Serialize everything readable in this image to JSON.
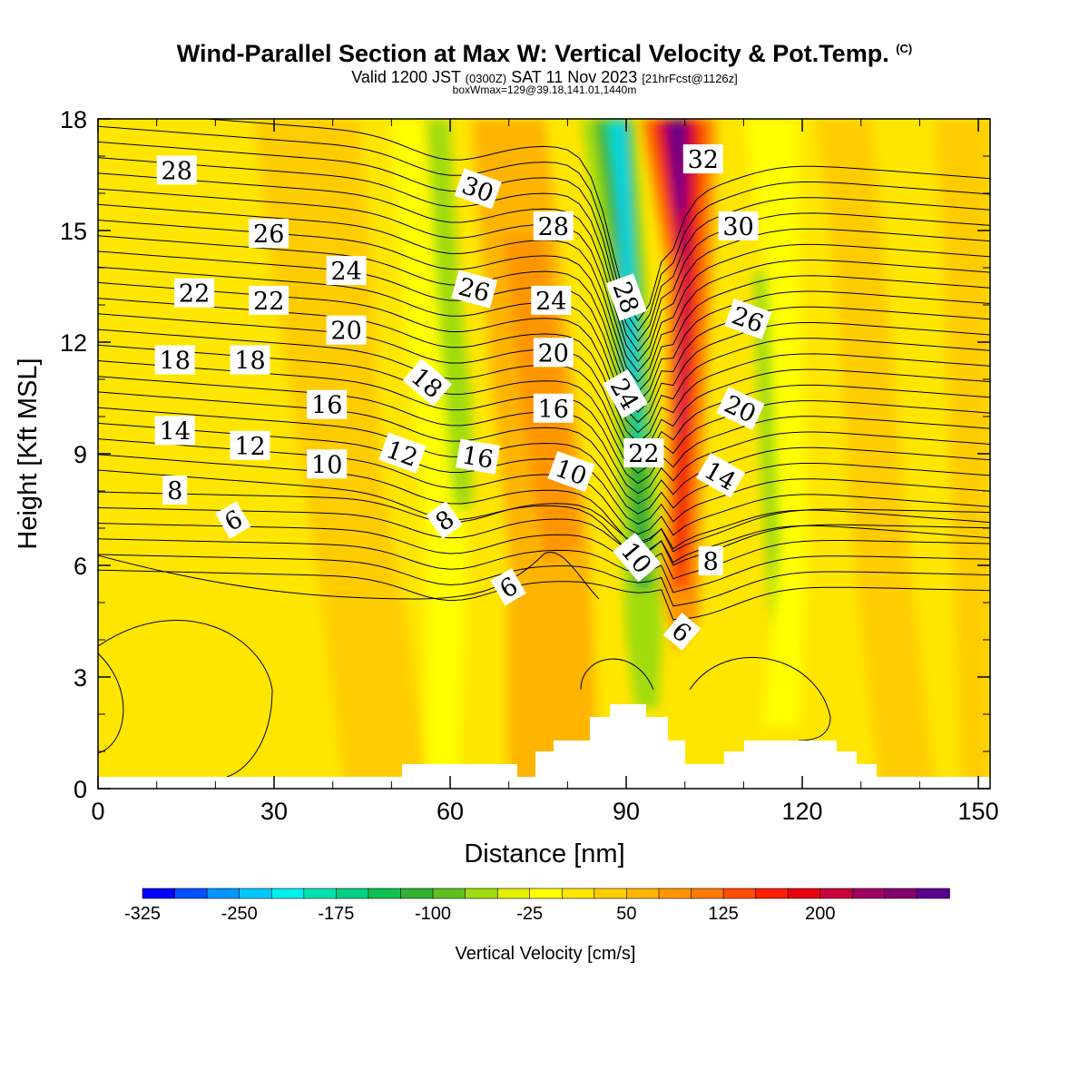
{
  "header": {
    "title": "Wind-Parallel Section at Max W: Vertical Velocity & Pot.Temp.",
    "copyright": "(C)",
    "valid_prefix": "Valid 1200 JST",
    "valid_utc": "(0300Z)",
    "valid_date": "SAT 11 Nov 2023",
    "forecast": "[21hrFcst@1126z]",
    "box_info": "boxWmax=129@39.18,141.01,1440m"
  },
  "chart_data": {
    "type": "heatmap",
    "title": "Wind-Parallel Section at Max W: Vertical Velocity & Pot.Temp.",
    "xlabel": "Distance [nm]",
    "ylabel": "Height [Kft MSL]",
    "xlim": [
      0,
      152
    ],
    "ylim": [
      0,
      18
    ],
    "x_ticks": [
      "0",
      "30",
      "60",
      "90",
      "120",
      "150"
    ],
    "y_ticks": [
      "0",
      "3",
      "6",
      "9",
      "12",
      "15",
      "18"
    ],
    "colorbar_label": "Vertical Velocity [cm/s]",
    "colorbar_ticks": [
      "-325",
      "-250",
      "-175",
      "-100",
      "-25",
      "50",
      "125",
      "200"
    ],
    "colorbar_colors": [
      "#0000ff",
      "#0050ff",
      "#0096ff",
      "#00c8ff",
      "#00f0f0",
      "#00e0b0",
      "#00d080",
      "#10c050",
      "#30b030",
      "#60c020",
      "#a0dc10",
      "#e6f000",
      "#ffff00",
      "#ffe600",
      "#ffcc00",
      "#ffb400",
      "#ff9600",
      "#ff7800",
      "#ff4c00",
      "#ff1c00",
      "#e60010",
      "#c8003c",
      "#a00064",
      "#82006e",
      "#5a008c"
    ],
    "contour_labels": [
      {
        "text": "28",
        "x": 13.4,
        "y": 16.6,
        "rot": 0
      },
      {
        "text": "26",
        "x": 29.1,
        "y": 14.9,
        "rot": 0
      },
      {
        "text": "24",
        "x": 42.3,
        "y": 13.9,
        "rot": 0
      },
      {
        "text": "22",
        "x": 16.4,
        "y": 13.3,
        "rot": 0
      },
      {
        "text": "22",
        "x": 29.1,
        "y": 13.1,
        "rot": 0
      },
      {
        "text": "20",
        "x": 42.3,
        "y": 12.3,
        "rot": 0
      },
      {
        "text": "18",
        "x": 13.1,
        "y": 11.5,
        "rot": 0
      },
      {
        "text": "18",
        "x": 25.9,
        "y": 11.5,
        "rot": 0
      },
      {
        "text": "16",
        "x": 39.0,
        "y": 10.3,
        "rot": 0
      },
      {
        "text": "14",
        "x": 13.1,
        "y": 9.6,
        "rot": 0
      },
      {
        "text": "12",
        "x": 25.9,
        "y": 9.2,
        "rot": 0
      },
      {
        "text": "10",
        "x": 39.0,
        "y": 8.7,
        "rot": 0
      },
      {
        "text": "8",
        "x": 13.1,
        "y": 8.0,
        "rot": 0
      },
      {
        "text": "6",
        "x": 23.1,
        "y": 7.2,
        "rot": -30
      },
      {
        "text": "30",
        "x": 64.7,
        "y": 16.1,
        "rot": 20
      },
      {
        "text": "28",
        "x": 77.6,
        "y": 15.1,
        "rot": 0
      },
      {
        "text": "26",
        "x": 64.1,
        "y": 13.4,
        "rot": 15
      },
      {
        "text": "24",
        "x": 77.2,
        "y": 13.1,
        "rot": 0
      },
      {
        "text": "20",
        "x": 77.6,
        "y": 11.7,
        "rot": 0
      },
      {
        "text": "18",
        "x": 56.0,
        "y": 10.9,
        "rot": 40
      },
      {
        "text": "16",
        "x": 77.6,
        "y": 10.2,
        "rot": 0
      },
      {
        "text": "16",
        "x": 64.7,
        "y": 8.9,
        "rot": 10
      },
      {
        "text": "12",
        "x": 51.8,
        "y": 9.0,
        "rot": 20
      },
      {
        "text": "10",
        "x": 80.6,
        "y": 8.5,
        "rot": 20
      },
      {
        "text": "8",
        "x": 59.1,
        "y": 7.2,
        "rot": -35
      },
      {
        "text": "6",
        "x": 70.0,
        "y": 5.4,
        "rot": -30
      },
      {
        "text": "28",
        "x": 89.9,
        "y": 13.2,
        "rot": 70
      },
      {
        "text": "24",
        "x": 89.7,
        "y": 10.6,
        "rot": 60
      },
      {
        "text": "22",
        "x": 93.0,
        "y": 9.0,
        "rot": 0
      },
      {
        "text": "10",
        "x": 91.7,
        "y": 6.2,
        "rot": 50
      },
      {
        "text": "6",
        "x": 99.4,
        "y": 4.2,
        "rot": 40
      },
      {
        "text": "32",
        "x": 103.1,
        "y": 16.9,
        "rot": 0
      },
      {
        "text": "30",
        "x": 109.1,
        "y": 15.1,
        "rot": 0
      },
      {
        "text": "26",
        "x": 110.7,
        "y": 12.6,
        "rot": 20
      },
      {
        "text": "20",
        "x": 109.4,
        "y": 10.2,
        "rot": 25
      },
      {
        "text": "14",
        "x": 106.0,
        "y": 8.4,
        "rot": 30
      },
      {
        "text": "8",
        "x": 104.4,
        "y": 6.1,
        "rot": 0
      }
    ]
  }
}
